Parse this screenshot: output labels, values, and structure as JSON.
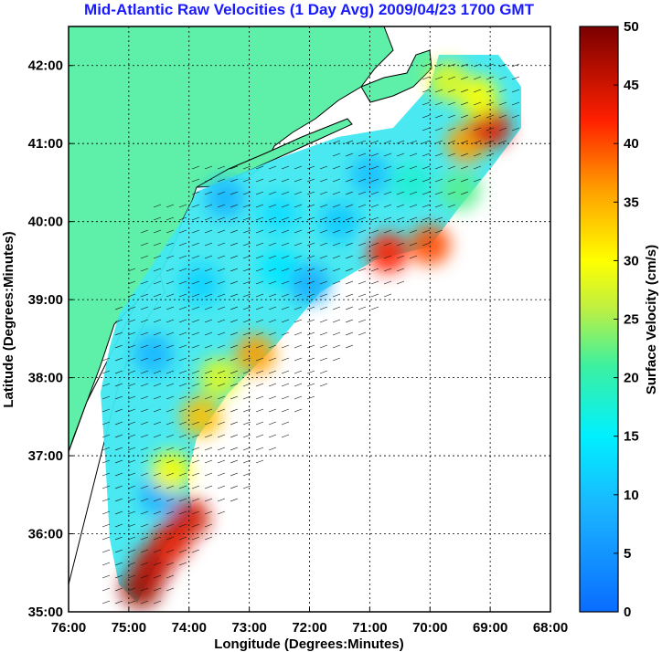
{
  "chart_data": {
    "type": "heatmap",
    "title": "Mid-Atlantic Raw Velocities (1 Day Avg) 2009/04/23 1700 GMT",
    "xlabel": "Longitude (Degrees:Minutes)",
    "ylabel": "Latitude (Degrees:Minutes)",
    "xlim": [
      -76,
      -68
    ],
    "ylim": [
      35,
      42.5
    ],
    "x_ticks": [
      {
        "value": -76,
        "label": "76:00"
      },
      {
        "value": -75,
        "label": "75:00"
      },
      {
        "value": -74,
        "label": "74:00"
      },
      {
        "value": -73,
        "label": "73:00"
      },
      {
        "value": -72,
        "label": "72:00"
      },
      {
        "value": -71,
        "label": "71:00"
      },
      {
        "value": -70,
        "label": "70:00"
      },
      {
        "value": -69,
        "label": "69:00"
      },
      {
        "value": -68,
        "label": "68:00"
      }
    ],
    "y_ticks": [
      {
        "value": 35,
        "label": "35:00"
      },
      {
        "value": 36,
        "label": "36:00"
      },
      {
        "value": 37,
        "label": "37:00"
      },
      {
        "value": 38,
        "label": "38:00"
      },
      {
        "value": 39,
        "label": "39:00"
      },
      {
        "value": 40,
        "label": "40:00"
      },
      {
        "value": 41,
        "label": "41:00"
      },
      {
        "value": 42,
        "label": "42:00"
      }
    ],
    "grid": true,
    "grid_style": "dotted",
    "land_color": "#5ef0a8",
    "colorbar": {
      "label": "Surface Velocity (cm/s)",
      "range": [
        0,
        50
      ],
      "ticks": [
        "0",
        "5",
        "10",
        "15",
        "20",
        "25",
        "30",
        "35",
        "40",
        "45",
        "50"
      ],
      "colormap": "jet",
      "position": "right"
    },
    "velocity_field": [
      {
        "lon": -74.8,
        "lat": 35.3,
        "speed": 48
      },
      {
        "lon": -74.6,
        "lat": 35.6,
        "speed": 46
      },
      {
        "lon": -74.3,
        "lat": 35.9,
        "speed": 44
      },
      {
        "lon": -74.0,
        "lat": 36.2,
        "speed": 45
      },
      {
        "lon": -74.5,
        "lat": 36.5,
        "speed": 8
      },
      {
        "lon": -74.3,
        "lat": 36.8,
        "speed": 30
      },
      {
        "lon": -73.8,
        "lat": 37.5,
        "speed": 34
      },
      {
        "lon": -73.5,
        "lat": 38.0,
        "speed": 28
      },
      {
        "lon": -72.9,
        "lat": 38.3,
        "speed": 36
      },
      {
        "lon": -74.6,
        "lat": 38.3,
        "speed": 9
      },
      {
        "lon": -73.8,
        "lat": 39.2,
        "speed": 12
      },
      {
        "lon": -72.5,
        "lat": 39.4,
        "speed": 14
      },
      {
        "lon": -72.0,
        "lat": 39.2,
        "speed": 8
      },
      {
        "lon": -73.4,
        "lat": 40.3,
        "speed": 9
      },
      {
        "lon": -72.5,
        "lat": 40.1,
        "speed": 13
      },
      {
        "lon": -71.5,
        "lat": 40.0,
        "speed": 11
      },
      {
        "lon": -71.0,
        "lat": 40.6,
        "speed": 10
      },
      {
        "lon": -70.3,
        "lat": 40.5,
        "speed": 18
      },
      {
        "lon": -70.7,
        "lat": 39.6,
        "speed": 42
      },
      {
        "lon": -70.0,
        "lat": 39.7,
        "speed": 40
      },
      {
        "lon": -69.5,
        "lat": 40.4,
        "speed": 22
      },
      {
        "lon": -69.4,
        "lat": 41.0,
        "speed": 36
      },
      {
        "lon": -69.0,
        "lat": 41.2,
        "speed": 44
      },
      {
        "lon": -69.2,
        "lat": 41.6,
        "speed": 30
      },
      {
        "lon": -69.7,
        "lat": 41.8,
        "speed": 28
      }
    ]
  }
}
